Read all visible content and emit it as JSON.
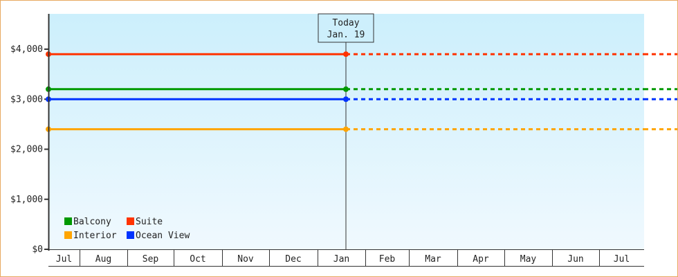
{
  "chart_data": {
    "type": "line",
    "title": "",
    "xlabel": "",
    "ylabel": "",
    "ylim": [
      0,
      4700
    ],
    "yticks": [
      0,
      1000,
      2000,
      3000,
      4000
    ],
    "ytick_labels": [
      "$0",
      "$1,000",
      "$2,000",
      "$3,000",
      "$4,000"
    ],
    "x_months": [
      "Jul",
      "Aug",
      "Sep",
      "Oct",
      "Nov",
      "Dec",
      "Jan",
      "Feb",
      "Mar",
      "Apr",
      "May",
      "Jun",
      "Jul"
    ],
    "today_marker": {
      "label": "Today",
      "date": "Jan. 19"
    },
    "grid": false,
    "legend_placement": "bottom-left",
    "series": [
      {
        "name": "Balcony",
        "value": 3200,
        "color": "#009900"
      },
      {
        "name": "Suite",
        "value": 3900,
        "color": "#ff3300"
      },
      {
        "name": "Interior",
        "value": 2400,
        "color": "#ffa500"
      },
      {
        "name": "Ocean View",
        "value": 3000,
        "color": "#0033ff"
      }
    ],
    "note_style": "solid until today, dashed after"
  }
}
